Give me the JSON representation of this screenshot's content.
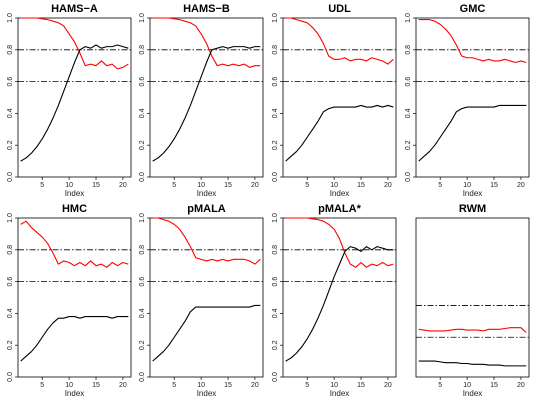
{
  "chart_data": [
    {
      "type": "line",
      "title": "HAMS−A",
      "xlabel": "Index",
      "ylabel": "",
      "xlim": [
        0.5,
        21.5
      ],
      "ylim": [
        0,
        1.0
      ],
      "x_ticks": [
        "5",
        "10",
        "15",
        "20"
      ],
      "y_ticks": [
        "0.0",
        "0.2",
        "0.4",
        "0.6",
        "0.8",
        "1.0"
      ],
      "x": [
        1,
        2,
        3,
        4,
        5,
        6,
        7,
        8,
        9,
        10,
        11,
        12,
        13,
        14,
        15,
        16,
        17,
        18,
        19,
        20,
        21
      ],
      "hlines": [
        0.8,
        0.6
      ],
      "series": [
        {
          "color": "#ff0000",
          "values": [
            1.0,
            1.0,
            1.0,
            1.0,
            0.995,
            0.99,
            0.98,
            0.97,
            0.95,
            0.9,
            0.85,
            0.78,
            0.7,
            0.71,
            0.7,
            0.73,
            0.7,
            0.71,
            0.68,
            0.69,
            0.71
          ]
        },
        {
          "color": "#000000",
          "values": [
            0.1,
            0.12,
            0.15,
            0.19,
            0.24,
            0.3,
            0.37,
            0.45,
            0.54,
            0.63,
            0.72,
            0.8,
            0.82,
            0.81,
            0.83,
            0.81,
            0.82,
            0.82,
            0.83,
            0.82,
            0.81
          ]
        }
      ]
    },
    {
      "type": "line",
      "title": "HAMS−B",
      "xlabel": "Index",
      "ylabel": "",
      "xlim": [
        0.5,
        21.5
      ],
      "ylim": [
        0,
        1.0
      ],
      "x_ticks": [
        "5",
        "10",
        "15",
        "20"
      ],
      "y_ticks": [
        "0.0",
        "0.2",
        "0.4",
        "0.6",
        "0.8",
        "1.0"
      ],
      "x": [
        1,
        2,
        3,
        4,
        5,
        6,
        7,
        8,
        9,
        10,
        11,
        12,
        13,
        14,
        15,
        16,
        17,
        18,
        19,
        20,
        21
      ],
      "hlines": [
        0.8,
        0.6
      ],
      "series": [
        {
          "color": "#ff0000",
          "values": [
            1.0,
            1.0,
            1.0,
            1.0,
            0.995,
            0.99,
            0.98,
            0.97,
            0.95,
            0.9,
            0.84,
            0.76,
            0.7,
            0.71,
            0.7,
            0.71,
            0.7,
            0.71,
            0.69,
            0.7,
            0.7
          ]
        },
        {
          "color": "#000000",
          "values": [
            0.1,
            0.12,
            0.15,
            0.19,
            0.24,
            0.3,
            0.37,
            0.45,
            0.54,
            0.63,
            0.72,
            0.8,
            0.81,
            0.82,
            0.81,
            0.82,
            0.82,
            0.82,
            0.81,
            0.82,
            0.82
          ]
        }
      ]
    },
    {
      "type": "line",
      "title": "UDL",
      "xlabel": "Index",
      "ylabel": "",
      "xlim": [
        0.5,
        21.5
      ],
      "ylim": [
        0,
        1.0
      ],
      "x_ticks": [
        "5",
        "10",
        "15",
        "20"
      ],
      "y_ticks": [
        "0.0",
        "0.2",
        "0.4",
        "0.6",
        "0.8",
        "1.0"
      ],
      "x": [
        1,
        2,
        3,
        4,
        5,
        6,
        7,
        8,
        9,
        10,
        11,
        12,
        13,
        14,
        15,
        16,
        17,
        18,
        19,
        20,
        21
      ],
      "hlines": [
        0.8,
        0.6
      ],
      "series": [
        {
          "color": "#ff0000",
          "values": [
            1.0,
            1.0,
            0.99,
            0.98,
            0.97,
            0.94,
            0.9,
            0.84,
            0.76,
            0.74,
            0.74,
            0.75,
            0.73,
            0.74,
            0.74,
            0.73,
            0.75,
            0.74,
            0.73,
            0.71,
            0.74
          ]
        },
        {
          "color": "#000000",
          "values": [
            0.1,
            0.13,
            0.16,
            0.2,
            0.25,
            0.3,
            0.35,
            0.41,
            0.43,
            0.44,
            0.44,
            0.44,
            0.44,
            0.44,
            0.45,
            0.44,
            0.44,
            0.45,
            0.44,
            0.45,
            0.44
          ]
        }
      ]
    },
    {
      "type": "line",
      "title": "GMC",
      "xlabel": "Index",
      "ylabel": "",
      "xlim": [
        0.5,
        21.5
      ],
      "ylim": [
        0,
        1.0
      ],
      "x_ticks": [
        "5",
        "10",
        "15",
        "20"
      ],
      "y_ticks": [
        "0.0",
        "0.2",
        "0.4",
        "0.6",
        "0.8",
        "1.0"
      ],
      "x": [
        1,
        2,
        3,
        4,
        5,
        6,
        7,
        8,
        9,
        10,
        11,
        12,
        13,
        14,
        15,
        16,
        17,
        18,
        19,
        20,
        21
      ],
      "hlines": [
        0.8,
        0.6
      ],
      "series": [
        {
          "color": "#ff0000",
          "values": [
            0.99,
            0.99,
            0.99,
            0.98,
            0.96,
            0.93,
            0.89,
            0.83,
            0.76,
            0.75,
            0.75,
            0.74,
            0.73,
            0.74,
            0.73,
            0.73,
            0.74,
            0.73,
            0.72,
            0.73,
            0.72
          ]
        },
        {
          "color": "#000000",
          "values": [
            0.1,
            0.13,
            0.16,
            0.2,
            0.25,
            0.3,
            0.35,
            0.41,
            0.43,
            0.44,
            0.44,
            0.44,
            0.44,
            0.44,
            0.44,
            0.45,
            0.45,
            0.45,
            0.45,
            0.45,
            0.45
          ]
        }
      ]
    },
    {
      "type": "line",
      "title": "HMC",
      "xlabel": "Index",
      "ylabel": "",
      "xlim": [
        0.5,
        21.5
      ],
      "ylim": [
        0,
        1.0
      ],
      "x_ticks": [
        "5",
        "10",
        "15",
        "20"
      ],
      "y_ticks": [
        "0.0",
        "0.2",
        "0.4",
        "0.6",
        "0.8",
        "1.0"
      ],
      "x": [
        1,
        2,
        3,
        4,
        5,
        6,
        7,
        8,
        9,
        10,
        11,
        12,
        13,
        14,
        15,
        16,
        17,
        18,
        19,
        20,
        21
      ],
      "hlines": [
        0.8,
        0.6
      ],
      "series": [
        {
          "color": "#ff0000",
          "values": [
            0.96,
            0.98,
            0.94,
            0.91,
            0.88,
            0.84,
            0.78,
            0.71,
            0.73,
            0.72,
            0.7,
            0.72,
            0.7,
            0.73,
            0.7,
            0.71,
            0.69,
            0.72,
            0.7,
            0.72,
            0.71
          ]
        },
        {
          "color": "#000000",
          "values": [
            0.1,
            0.13,
            0.16,
            0.2,
            0.25,
            0.3,
            0.34,
            0.37,
            0.37,
            0.38,
            0.38,
            0.37,
            0.38,
            0.38,
            0.38,
            0.38,
            0.38,
            0.37,
            0.38,
            0.38,
            0.38
          ]
        }
      ]
    },
    {
      "type": "line",
      "title": "pMALA",
      "xlabel": "Index",
      "ylabel": "",
      "xlim": [
        0.5,
        21.5
      ],
      "ylim": [
        0,
        1.0
      ],
      "x_ticks": [
        "5",
        "10",
        "15",
        "20"
      ],
      "y_ticks": [
        "0.0",
        "0.2",
        "0.4",
        "0.6",
        "0.8",
        "1.0"
      ],
      "x": [
        1,
        2,
        3,
        4,
        5,
        6,
        7,
        8,
        9,
        10,
        11,
        12,
        13,
        14,
        15,
        16,
        17,
        18,
        19,
        20,
        21
      ],
      "hlines": [
        0.8,
        0.6
      ],
      "series": [
        {
          "color": "#ff0000",
          "values": [
            1.0,
            1.0,
            0.99,
            0.98,
            0.96,
            0.93,
            0.88,
            0.82,
            0.75,
            0.74,
            0.73,
            0.74,
            0.73,
            0.74,
            0.73,
            0.74,
            0.74,
            0.74,
            0.73,
            0.71,
            0.74
          ]
        },
        {
          "color": "#000000",
          "values": [
            0.1,
            0.13,
            0.16,
            0.2,
            0.25,
            0.3,
            0.35,
            0.41,
            0.44,
            0.44,
            0.44,
            0.44,
            0.44,
            0.44,
            0.44,
            0.44,
            0.44,
            0.44,
            0.44,
            0.45,
            0.45
          ]
        }
      ]
    },
    {
      "type": "line",
      "title": "pMALA*",
      "xlabel": "Index",
      "ylabel": "",
      "xlim": [
        0.5,
        21.5
      ],
      "ylim": [
        0,
        1.0
      ],
      "x_ticks": [
        "5",
        "10",
        "15",
        "20"
      ],
      "y_ticks": [
        "0.0",
        "0.2",
        "0.4",
        "0.6",
        "0.8",
        "1.0"
      ],
      "x": [
        1,
        2,
        3,
        4,
        5,
        6,
        7,
        8,
        9,
        10,
        11,
        12,
        13,
        14,
        15,
        16,
        17,
        18,
        19,
        20,
        21
      ],
      "hlines": [
        0.8,
        0.6
      ],
      "series": [
        {
          "color": "#ff0000",
          "values": [
            1.0,
            1.0,
            1.0,
            1.0,
            1.0,
            0.995,
            0.99,
            0.98,
            0.96,
            0.93,
            0.87,
            0.78,
            0.71,
            0.69,
            0.72,
            0.69,
            0.71,
            0.7,
            0.72,
            0.7,
            0.71
          ]
        },
        {
          "color": "#000000",
          "values": [
            0.1,
            0.12,
            0.15,
            0.19,
            0.24,
            0.3,
            0.37,
            0.45,
            0.54,
            0.63,
            0.71,
            0.79,
            0.82,
            0.81,
            0.79,
            0.82,
            0.8,
            0.82,
            0.81,
            0.8,
            0.8
          ]
        }
      ]
    },
    {
      "type": "line",
      "title": "RWM",
      "xlabel": "Index",
      "ylabel": "",
      "xlim": [
        0.5,
        21.5
      ],
      "ylim": [
        0,
        1.0
      ],
      "x_ticks": [
        "5",
        "10",
        "15",
        "20"
      ],
      "y_ticks": [],
      "x": [
        1,
        2,
        3,
        4,
        5,
        6,
        7,
        8,
        9,
        10,
        11,
        12,
        13,
        14,
        15,
        16,
        17,
        18,
        19,
        20,
        21
      ],
      "hlines": [
        0.45,
        0.25
      ],
      "series": [
        {
          "color": "#ff0000",
          "values": [
            0.3,
            0.295,
            0.29,
            0.29,
            0.29,
            0.29,
            0.295,
            0.3,
            0.3,
            0.295,
            0.295,
            0.295,
            0.29,
            0.3,
            0.3,
            0.3,
            0.305,
            0.31,
            0.31,
            0.31,
            0.28
          ]
        },
        {
          "color": "#000000",
          "values": [
            0.1,
            0.1,
            0.1,
            0.1,
            0.095,
            0.09,
            0.09,
            0.09,
            0.085,
            0.085,
            0.08,
            0.08,
            0.08,
            0.075,
            0.075,
            0.075,
            0.07,
            0.07,
            0.07,
            0.07,
            0.07
          ]
        }
      ]
    }
  ]
}
